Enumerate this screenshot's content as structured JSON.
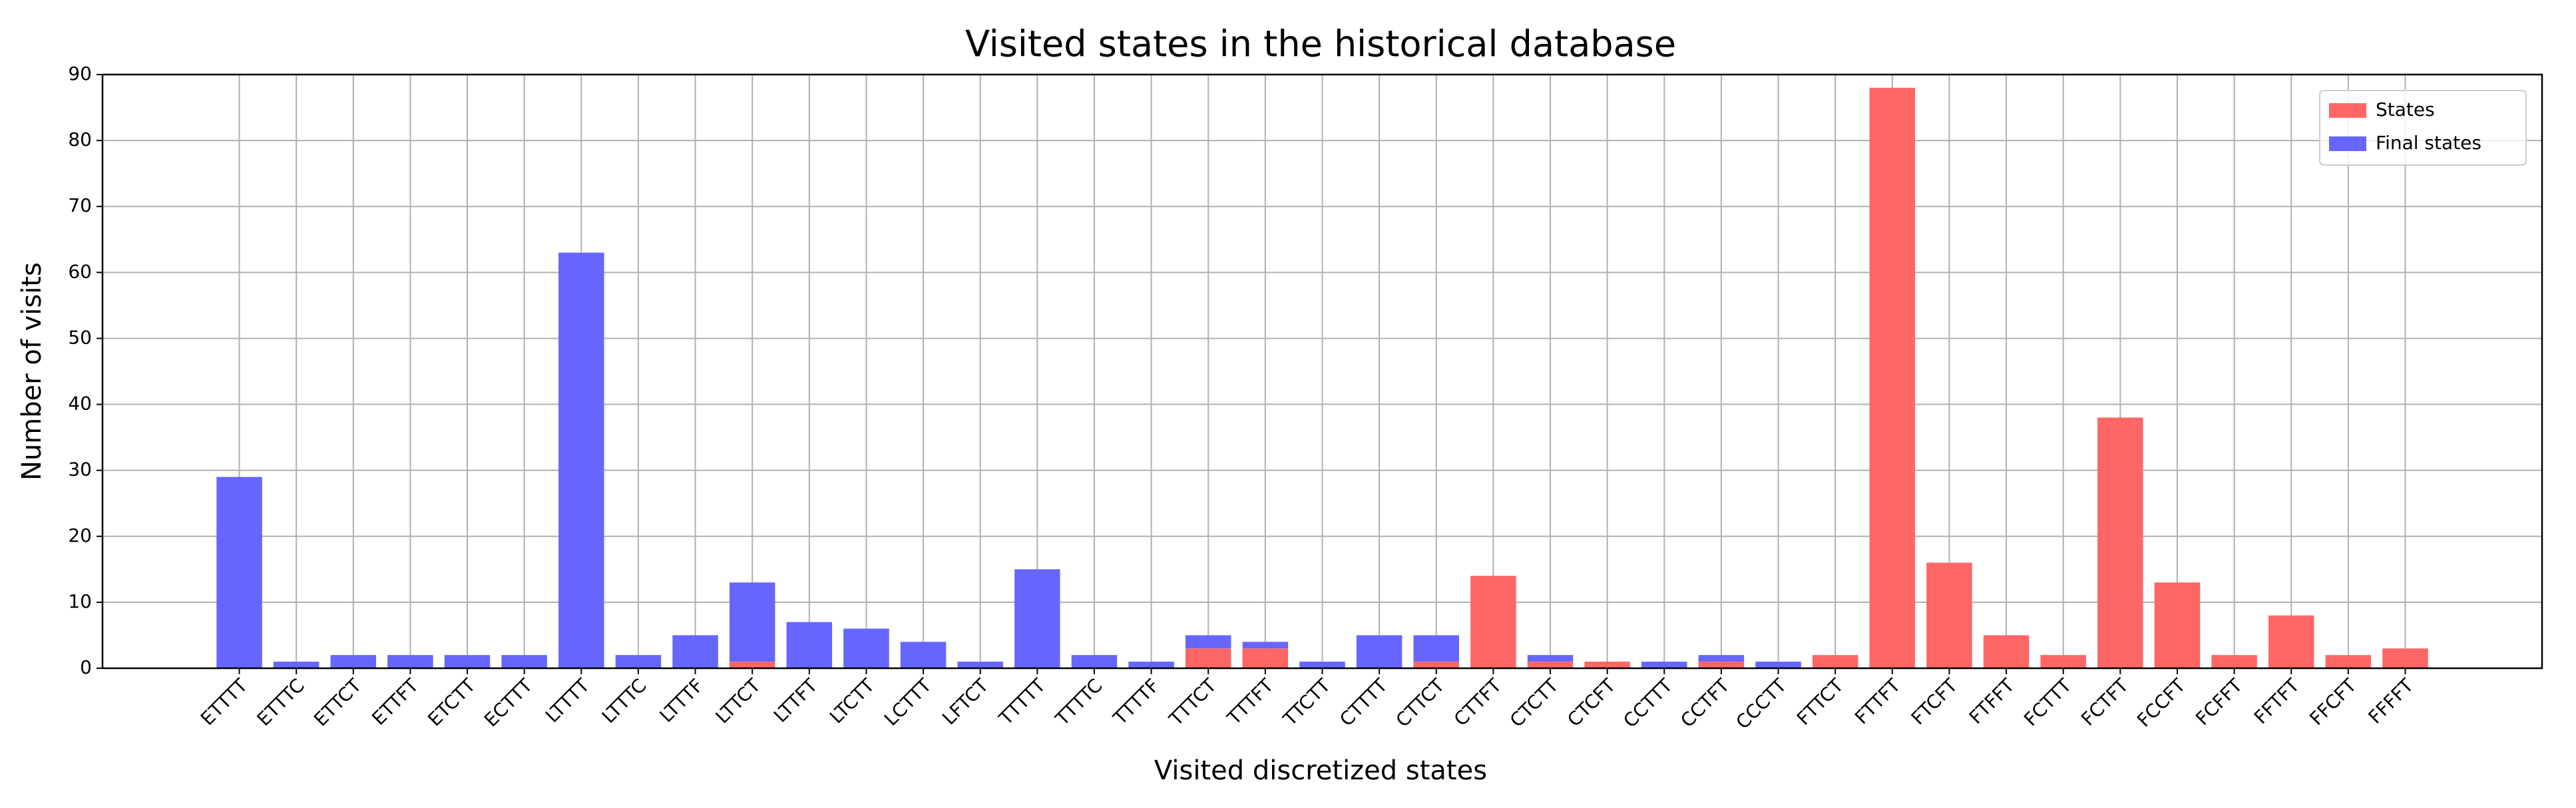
{
  "chart_data": {
    "type": "bar",
    "stacked": true,
    "title": "Visited states in the historical database",
    "x_label": "Visited discretized states",
    "y_label": "Number of visits",
    "categories": [
      "ETTTT",
      "ETTTC",
      "ETTCT",
      "ETTFT",
      "ETCTT",
      "ECTTT",
      "LTTTT",
      "LTTTC",
      "LTTTF",
      "LTTCT",
      "LTTFT",
      "LTCTT",
      "LCTTT",
      "LFTCT",
      "TTTTT",
      "TTTTC",
      "TTTTF",
      "TTTCT",
      "TTTFT",
      "TTCTT",
      "CTTTT",
      "CTTCT",
      "CTTFT",
      "CTCTT",
      "CTCFT",
      "CCTTT",
      "CCTFT",
      "CCCTT",
      "FTTCT",
      "FTTFT",
      "FTCFT",
      "FTFFT",
      "FCTTT",
      "FCTFT",
      "FCCFT",
      "FCFFT",
      "FFTFT",
      "FFCFT",
      "FFFFT"
    ],
    "series": [
      {
        "name": "States",
        "color": "#ff6666",
        "values": [
          0,
          0,
          0,
          0,
          0,
          0,
          0,
          0,
          0,
          1,
          0,
          0,
          0,
          0,
          0,
          0,
          0,
          3,
          3,
          0,
          0,
          1,
          14,
          1,
          1,
          0,
          1,
          0,
          2,
          88,
          16,
          5,
          2,
          38,
          13,
          2,
          8,
          2,
          3
        ]
      },
      {
        "name": "Final states",
        "color": "#6666ff",
        "values": [
          29,
          1,
          2,
          2,
          2,
          2,
          63,
          2,
          5,
          12,
          7,
          6,
          4,
          1,
          15,
          2,
          1,
          2,
          1,
          1,
          5,
          4,
          0,
          1,
          0,
          1,
          1,
          1,
          0,
          0,
          0,
          0,
          0,
          0,
          0,
          0,
          0,
          0,
          0
        ]
      }
    ],
    "ylim": [
      0,
      90
    ],
    "yticks": [
      0,
      10,
      20,
      30,
      40,
      50,
      60,
      70,
      80,
      90
    ],
    "grid": true,
    "legend": "upper right"
  }
}
